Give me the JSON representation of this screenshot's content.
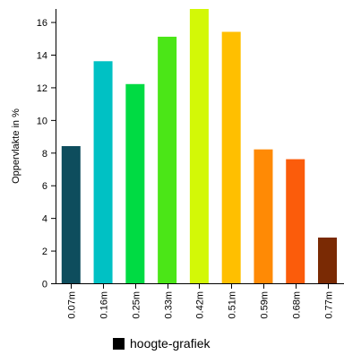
{
  "chart_data": {
    "type": "bar",
    "title": "",
    "xlabel": "",
    "ylabel": "Oppervlakte in %",
    "ylim": [
      0,
      16.8
    ],
    "yticks": [
      "0",
      "2",
      "4",
      "6",
      "8",
      "10",
      "12",
      "14",
      "16"
    ],
    "categories": [
      "0.07m",
      "0.16m",
      "0.25m",
      "0.33m",
      "0.42m",
      "0.51m",
      "0.59m",
      "0.68m",
      "0.77m"
    ],
    "values": [
      8.4,
      13.6,
      12.2,
      15.1,
      16.8,
      15.4,
      8.2,
      7.6,
      2.8
    ],
    "colors": [
      "#0e4d5d",
      "#00c1c4",
      "#00db43",
      "#4be617",
      "#d3f807",
      "#ffbf00",
      "#ff8a05",
      "#fb5c0b",
      "#7a2a04"
    ],
    "grid": false,
    "legend": {
      "position": "bottom",
      "swatch_color": "#000000",
      "label": "hoogte-grafiek"
    }
  }
}
